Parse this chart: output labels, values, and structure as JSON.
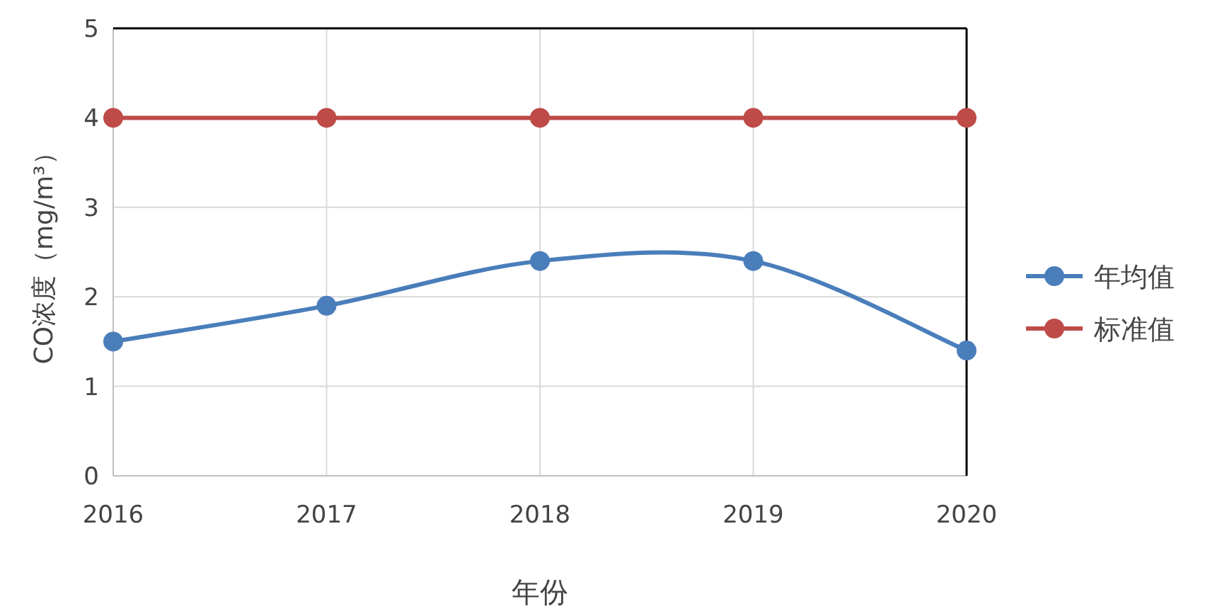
{
  "chart_data": {
    "type": "line",
    "xlabel": "年份",
    "ylabel": "CO浓度（mg/m³）",
    "x": [
      2016,
      2017,
      2018,
      2019,
      2020
    ],
    "xlim": [
      2016,
      2020
    ],
    "xticks": [
      2016,
      2017,
      2018,
      2019,
      2020
    ],
    "ylim": [
      0,
      5
    ],
    "yticks": [
      0,
      1,
      2,
      3,
      4,
      5
    ],
    "grid": true,
    "legend": "right",
    "marker": "circle",
    "line_style": "solid",
    "series": [
      {
        "name": "年均值",
        "color": "#4a7ebb",
        "values": [
          1.5,
          1.9,
          2.4,
          2.4,
          1.4
        ]
      },
      {
        "name": "标准值",
        "color": "#be4b48",
        "values": [
          4,
          4,
          4,
          4,
          4
        ]
      }
    ]
  }
}
